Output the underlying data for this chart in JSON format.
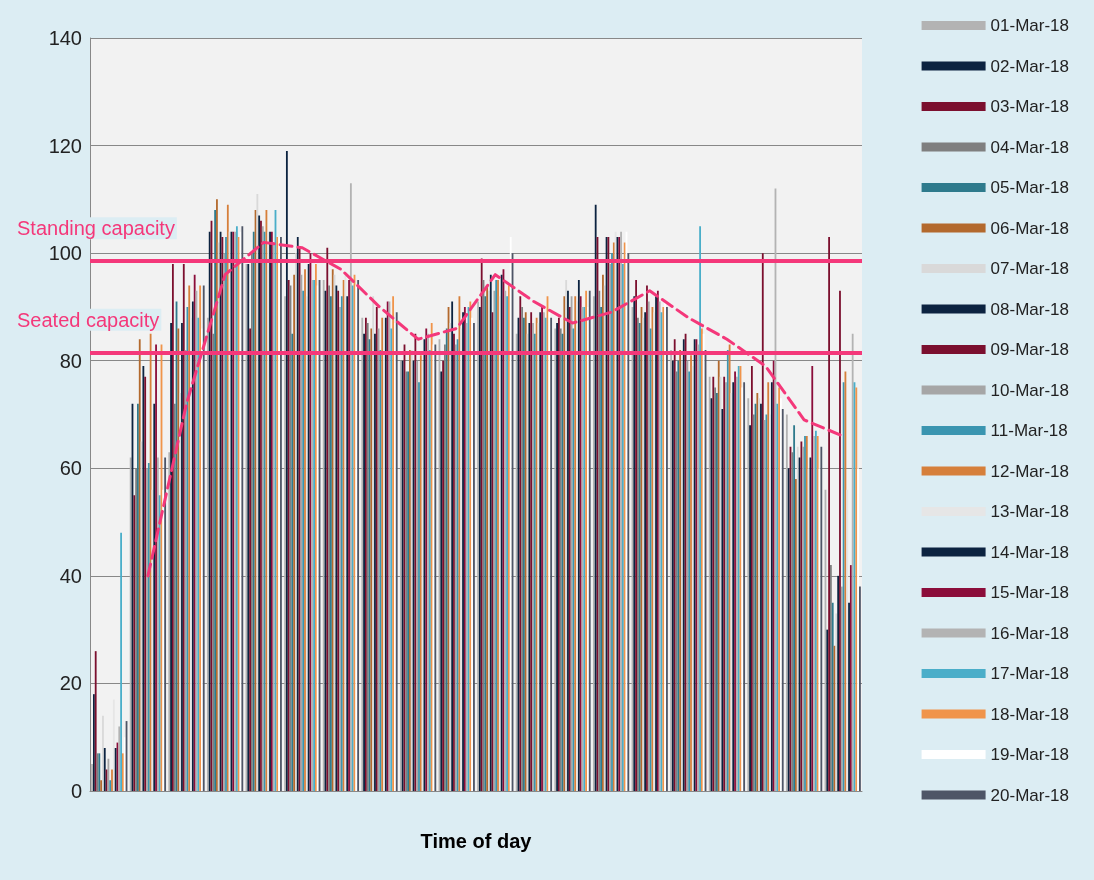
{
  "chart_data": {
    "type": "bar",
    "xlabel": "Time of day",
    "categories": [
      null,
      null,
      null,
      null,
      null,
      null,
      null,
      null,
      null,
      null,
      null,
      null,
      null,
      null,
      null,
      null,
      null,
      null,
      null,
      null
    ],
    "ylim": [
      0,
      140
    ],
    "yticks": [
      0,
      20,
      40,
      60,
      80,
      100,
      120,
      140
    ],
    "grid": "y",
    "legend": "right",
    "series": [
      {
        "name": "01-Mar-18",
        "color": "#b3b3b3",
        "values": [
          5,
          62,
          63,
          88,
          98,
          92,
          95,
          88,
          80,
          84,
          91,
          85,
          86,
          92,
          90,
          82,
          77,
          73,
          70,
          56
        ]
      },
      {
        "name": "02-Mar-18",
        "color": "#0c2340",
        "values": [
          18,
          72,
          87,
          104,
          98,
          119,
          93,
          85,
          80,
          78,
          90,
          88,
          87,
          109,
          92,
          80,
          73,
          68,
          60,
          30
        ]
      },
      {
        "name": "03-Mar-18",
        "color": "#7b0f2e",
        "values": [
          26,
          55,
          98,
          106,
          86,
          95,
          101,
          88,
          83,
          80,
          99,
          92,
          88,
          103,
          95,
          84,
          77,
          79,
          64,
          103
        ]
      },
      {
        "name": "04-Mar-18",
        "color": "#7f7f7f",
        "values": [
          7,
          60,
          72,
          85,
          100,
          94,
          94,
          87,
          78,
          83,
          95,
          90,
          86,
          93,
          88,
          78,
          75,
          70,
          63,
          42
        ]
      },
      {
        "name": "05-Mar-18",
        "color": "#2e7a8c",
        "values": [
          7,
          72,
          91,
          108,
          104,
          85,
          92,
          84,
          78,
          86,
          92,
          88,
          85,
          90,
          87,
          80,
          74,
          72,
          68,
          35
        ]
      },
      {
        "name": "06-Mar-18",
        "color": "#b3692d",
        "values": [
          2,
          84,
          86,
          110,
          108,
          96,
          97,
          86,
          82,
          90,
          94,
          89,
          92,
          96,
          90,
          82,
          80,
          74,
          58,
          27
        ]
      },
      {
        "name": "07-Mar-18",
        "color": "#d9d9d9",
        "values": [
          14,
          65,
          74,
          102,
          111,
          100,
          96,
          92,
          82,
          87,
          93,
          85,
          95,
          94,
          88,
          80,
          77,
          73,
          64,
          33
        ]
      },
      {
        "name": "08-Mar-18",
        "color": "#0c2340",
        "values": [
          8,
          79,
          87,
          104,
          107,
          103,
          94,
          85,
          80,
          91,
          96,
          87,
          93,
          103,
          89,
          84,
          71,
          72,
          62,
          40
        ]
      },
      {
        "name": "09-Mar-18",
        "color": "#7b0f2e",
        "values": [
          4,
          77,
          98,
          103,
          106,
          101,
          93,
          90,
          85,
          85,
          89,
          89,
          90,
          103,
          94,
          85,
          77,
          100,
          65,
          93
        ]
      },
      {
        "name": "10-Mar-18",
        "color": "#a6a6a6",
        "values": [
          6,
          60,
          82,
          100,
          105,
          96,
          90,
          86,
          80,
          83,
          93,
          87,
          92,
          98,
          91,
          80,
          76,
          69,
          64,
          38
        ]
      },
      {
        "name": "11-Mar-18",
        "color": "#3a95b0",
        "values": [
          2,
          61,
          90,
          103,
          104,
          93,
          92,
          82,
          76,
          84,
          95,
          85,
          86,
          100,
          86,
          78,
          82,
          70,
          66,
          76
        ]
      },
      {
        "name": "12-Mar-18",
        "color": "#d67f3a",
        "values": [
          4,
          85,
          94,
          109,
          108,
          97,
          95,
          88,
          81,
          92,
          95,
          88,
          92,
          102,
          90,
          81,
          83,
          76,
          66,
          78
        ]
      },
      {
        "name": "13-Mar-18",
        "color": "#e6e6e6",
        "values": [
          17,
          56,
          88,
          104,
          104,
          92,
          96,
          88,
          80,
          86,
          92,
          87,
          91,
          104,
          89,
          79,
          74,
          70,
          60,
          56
        ]
      },
      {
        "name": "14-Mar-18",
        "color": "#0c2340",
        "values": [
          8,
          72,
          91,
          104,
          104,
          98,
          92,
          88,
          84,
          89,
          96,
          89,
          95,
          103,
          92,
          84,
          76,
          76,
          62,
          35
        ]
      },
      {
        "name": "15-Mar-18",
        "color": "#8b0d3a",
        "values": [
          9,
          83,
          96,
          104,
          104,
          100,
          95,
          91,
          86,
          90,
          97,
          90,
          92,
          103,
          93,
          84,
          78,
          80,
          79,
          42
        ]
      },
      {
        "name": "16-Mar-18",
        "color": "#b3b3b3",
        "values": [
          12,
          62,
          93,
          104,
          102,
          95,
          113,
          91,
          85,
          87,
          93,
          89,
          90,
          104,
          91,
          83,
          77,
          112,
          66,
          85
        ]
      },
      {
        "name": "17-Mar-18",
        "color": "#4aaec9",
        "values": [
          48,
          55,
          88,
          105,
          108,
          95,
          94,
          86,
          82,
          90,
          92,
          88,
          90,
          98,
          89,
          105,
          79,
          72,
          67,
          76
        ]
      },
      {
        "name": "18-Mar-18",
        "color": "#f0944a",
        "values": [
          7,
          83,
          94,
          103,
          103,
          98,
          96,
          92,
          87,
          91,
          94,
          92,
          93,
          102,
          90,
          86,
          79,
          75,
          66,
          75
        ]
      },
      {
        "name": "19-Mar-18",
        "color": "#ffffff",
        "values": [
          10,
          56,
          86,
          104,
          103,
          94,
          94,
          87,
          83,
          88,
          103,
          89,
          90,
          104,
          91,
          85,
          75,
          73,
          60,
          60
        ]
      },
      {
        "name": "20-Mar-18",
        "color": "#4e5566",
        "values": [
          13,
          62,
          94,
          105,
          103,
          95,
          95,
          89,
          83,
          87,
          100,
          88,
          93,
          100,
          90,
          82,
          76,
          71,
          64,
          38
        ]
      },
      {
        "type": "line",
        "color": "#f4387a",
        "line_style": "dashed",
        "marker": "none",
        "values": [
          null,
          40,
          72,
          96,
          102,
          101,
          97,
          90,
          84,
          86,
          96,
          91,
          87,
          89,
          93,
          88,
          84,
          79,
          69,
          66
        ]
      }
    ],
    "ref_lines": [
      {
        "axis": "y",
        "value": 98.5,
        "label": "Standing capacity",
        "color": "#f4387a"
      },
      {
        "axis": "y",
        "value": 81.5,
        "label": "Seated capacity",
        "color": "#f4387a"
      }
    ]
  }
}
